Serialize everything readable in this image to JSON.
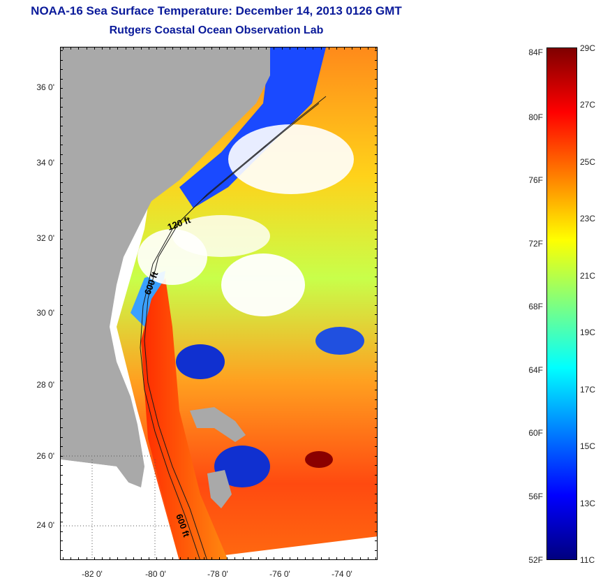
{
  "header": {
    "title": "NOAA-16 Sea Surface Temperature:  December 14, 2013 0126 GMT",
    "subtitle": "Rutgers Coastal Ocean Observation Lab"
  },
  "map": {
    "lat_labels": [
      "36 0'",
      "34 0'",
      "32 0'",
      "30 0'",
      "28 0'",
      "26 0'",
      "24 0'"
    ],
    "lon_labels": [
      "-82 0'",
      "-80 0'",
      "-78 0'",
      "-76 0'",
      "-74 0'"
    ],
    "isobath_labels": [
      "120 ft",
      "600 ft",
      "600 ft"
    ],
    "colors": {
      "land": "#a9a9a9",
      "cloud": "#ffffff",
      "contour": "#1a1a1a"
    }
  },
  "colorbar": {
    "fahrenheit_labels": [
      "84F",
      "80F",
      "76F",
      "72F",
      "68F",
      "64F",
      "60F",
      "56F",
      "52F"
    ],
    "celsius_labels": [
      "29C",
      "27C",
      "25C",
      "23C",
      "21C",
      "19C",
      "17C",
      "15C",
      "13C",
      "11C"
    ],
    "range_c": [
      11,
      29
    ],
    "colormap": [
      "#00007f",
      "#0000ff",
      "#007fff",
      "#00ffff",
      "#7fff7f",
      "#ffff00",
      "#ff7f00",
      "#ff0000",
      "#7f0000"
    ]
  }
}
